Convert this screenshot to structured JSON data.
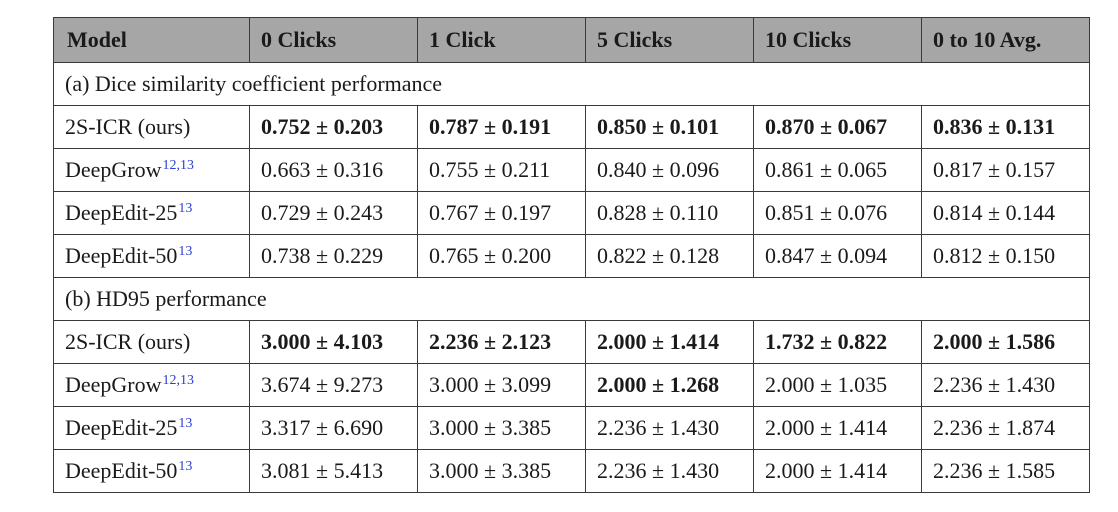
{
  "table": {
    "headers": [
      "Model",
      "0 Clicks",
      "1 Click",
      "5 Clicks",
      "10 Clicks",
      "0 to 10 Avg."
    ],
    "sections": [
      {
        "title": "(a) Dice similarity coefficient performance",
        "rows": [
          {
            "model": "2S-ICR (ours)",
            "ref": "",
            "cells": [
              "0.752 ± 0.203",
              "0.787 ± 0.191",
              "0.850 ± 0.101",
              "0.870 ± 0.067",
              "0.836 ± 0.131"
            ],
            "bold": [
              true,
              true,
              true,
              true,
              true
            ]
          },
          {
            "model": "DeepGrow",
            "ref": "12,13",
            "cells": [
              "0.663 ± 0.316",
              "0.755 ± 0.211",
              "0.840 ± 0.096",
              "0.861 ± 0.065",
              "0.817 ± 0.157"
            ],
            "bold": [
              false,
              false,
              false,
              false,
              false
            ]
          },
          {
            "model": "DeepEdit-25",
            "ref": "13",
            "cells": [
              "0.729 ± 0.243",
              "0.767 ± 0.197",
              "0.828 ± 0.110",
              "0.851 ± 0.076",
              "0.814 ± 0.144"
            ],
            "bold": [
              false,
              false,
              false,
              false,
              false
            ]
          },
          {
            "model": "DeepEdit-50",
            "ref": "13",
            "cells": [
              "0.738 ± 0.229",
              "0.765 ± 0.200",
              "0.822 ± 0.128",
              "0.847 ± 0.094",
              "0.812 ± 0.150"
            ],
            "bold": [
              false,
              false,
              false,
              false,
              false
            ]
          }
        ]
      },
      {
        "title": "(b) HD95 performance",
        "rows": [
          {
            "model": "2S-ICR (ours)",
            "ref": "",
            "cells": [
              "3.000 ± 4.103",
              "2.236 ± 2.123",
              "2.000 ± 1.414",
              "1.732 ± 0.822",
              "2.000 ± 1.586"
            ],
            "bold": [
              true,
              true,
              true,
              true,
              true
            ]
          },
          {
            "model": "DeepGrow",
            "ref": "12,13",
            "cells": [
              "3.674 ± 9.273",
              "3.000 ± 3.099",
              "2.000 ± 1.268",
              "2.000 ± 1.035",
              "2.236 ± 1.430"
            ],
            "bold": [
              false,
              false,
              true,
              false,
              false
            ]
          },
          {
            "model": "DeepEdit-25",
            "ref": "13",
            "cells": [
              "3.317 ± 6.690",
              "3.000 ± 3.385",
              "2.236 ± 1.430",
              "2.000 ± 1.414",
              "2.236 ± 1.874"
            ],
            "bold": [
              false,
              false,
              false,
              false,
              false
            ]
          },
          {
            "model": "DeepEdit-50",
            "ref": "13",
            "cells": [
              "3.081 ± 5.413",
              "3.000 ± 3.385",
              "2.236 ± 1.430",
              "2.000 ± 1.414",
              "2.236 ± 1.585"
            ],
            "bold": [
              false,
              false,
              false,
              false,
              false
            ]
          }
        ]
      }
    ]
  }
}
